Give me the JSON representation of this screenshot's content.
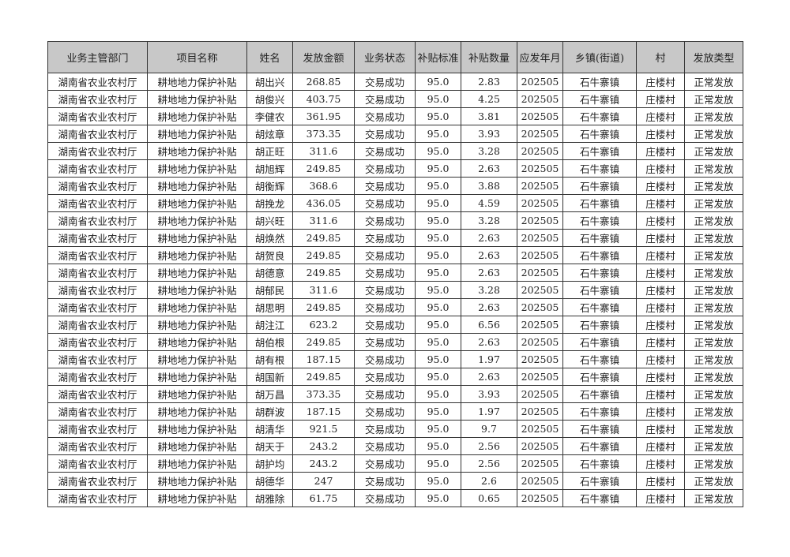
{
  "headers": [
    "业务主管部门",
    "项目名称",
    "姓名",
    "发放金额",
    "业务状态",
    "补贴标准",
    "补贴数量",
    "应发年月",
    "乡镇(街道)",
    "村",
    "发放类型"
  ],
  "rows": [
    [
      "湖南省农业农村厅",
      "耕地地力保护补贴",
      "胡出兴",
      "268.85",
      "交易成功",
      "95.0",
      "2.83",
      "202505",
      "石牛寨镇",
      "庄楼村",
      "正常发放"
    ],
    [
      "湖南省农业农村厅",
      "耕地地力保护补贴",
      "胡俊兴",
      "403.75",
      "交易成功",
      "95.0",
      "4.25",
      "202505",
      "石牛寨镇",
      "庄楼村",
      "正常发放"
    ],
    [
      "湖南省农业农村厅",
      "耕地地力保护补贴",
      "李健农",
      "361.95",
      "交易成功",
      "95.0",
      "3.81",
      "202505",
      "石牛寨镇",
      "庄楼村",
      "正常发放"
    ],
    [
      "湖南省农业农村厅",
      "耕地地力保护补贴",
      "胡炫章",
      "373.35",
      "交易成功",
      "95.0",
      "3.93",
      "202505",
      "石牛寨镇",
      "庄楼村",
      "正常发放"
    ],
    [
      "湖南省农业农村厅",
      "耕地地力保护补贴",
      "胡正旺",
      "311.6",
      "交易成功",
      "95.0",
      "3.28",
      "202505",
      "石牛寨镇",
      "庄楼村",
      "正常发放"
    ],
    [
      "湖南省农业农村厅",
      "耕地地力保护补贴",
      "胡旭辉",
      "249.85",
      "交易成功",
      "95.0",
      "2.63",
      "202505",
      "石牛寨镇",
      "庄楼村",
      "正常发放"
    ],
    [
      "湖南省农业农村厅",
      "耕地地力保护补贴",
      "胡衡辉",
      "368.6",
      "交易成功",
      "95.0",
      "3.88",
      "202505",
      "石牛寨镇",
      "庄楼村",
      "正常发放"
    ],
    [
      "湖南省农业农村厅",
      "耕地地力保护补贴",
      "胡挽龙",
      "436.05",
      "交易成功",
      "95.0",
      "4.59",
      "202505",
      "石牛寨镇",
      "庄楼村",
      "正常发放"
    ],
    [
      "湖南省农业农村厅",
      "耕地地力保护补贴",
      "胡兴旺",
      "311.6",
      "交易成功",
      "95.0",
      "3.28",
      "202505",
      "石牛寨镇",
      "庄楼村",
      "正常发放"
    ],
    [
      "湖南省农业农村厅",
      "耕地地力保护补贴",
      "胡焕然",
      "249.85",
      "交易成功",
      "95.0",
      "2.63",
      "202505",
      "石牛寨镇",
      "庄楼村",
      "正常发放"
    ],
    [
      "湖南省农业农村厅",
      "耕地地力保护补贴",
      "胡贺良",
      "249.85",
      "交易成功",
      "95.0",
      "2.63",
      "202505",
      "石牛寨镇",
      "庄楼村",
      "正常发放"
    ],
    [
      "湖南省农业农村厅",
      "耕地地力保护补贴",
      "胡德意",
      "249.85",
      "交易成功",
      "95.0",
      "2.63",
      "202505",
      "石牛寨镇",
      "庄楼村",
      "正常发放"
    ],
    [
      "湖南省农业农村厅",
      "耕地地力保护补贴",
      "胡郁民",
      "311.6",
      "交易成功",
      "95.0",
      "3.28",
      "202505",
      "石牛寨镇",
      "庄楼村",
      "正常发放"
    ],
    [
      "湖南省农业农村厅",
      "耕地地力保护补贴",
      "胡思明",
      "249.85",
      "交易成功",
      "95.0",
      "2.63",
      "202505",
      "石牛寨镇",
      "庄楼村",
      "正常发放"
    ],
    [
      "湖南省农业农村厅",
      "耕地地力保护补贴",
      "胡注江",
      "623.2",
      "交易成功",
      "95.0",
      "6.56",
      "202505",
      "石牛寨镇",
      "庄楼村",
      "正常发放"
    ],
    [
      "湖南省农业农村厅",
      "耕地地力保护补贴",
      "胡伯根",
      "249.85",
      "交易成功",
      "95.0",
      "2.63",
      "202505",
      "石牛寨镇",
      "庄楼村",
      "正常发放"
    ],
    [
      "湖南省农业农村厅",
      "耕地地力保护补贴",
      "胡有根",
      "187.15",
      "交易成功",
      "95.0",
      "1.97",
      "202505",
      "石牛寨镇",
      "庄楼村",
      "正常发放"
    ],
    [
      "湖南省农业农村厅",
      "耕地地力保护补贴",
      "胡国新",
      "249.85",
      "交易成功",
      "95.0",
      "2.63",
      "202505",
      "石牛寨镇",
      "庄楼村",
      "正常发放"
    ],
    [
      "湖南省农业农村厅",
      "耕地地力保护补贴",
      "胡万昌",
      "373.35",
      "交易成功",
      "95.0",
      "3.93",
      "202505",
      "石牛寨镇",
      "庄楼村",
      "正常发放"
    ],
    [
      "湖南省农业农村厅",
      "耕地地力保护补贴",
      "胡群波",
      "187.15",
      "交易成功",
      "95.0",
      "1.97",
      "202505",
      "石牛寨镇",
      "庄楼村",
      "正常发放"
    ],
    [
      "湖南省农业农村厅",
      "耕地地力保护补贴",
      "胡清华",
      "921.5",
      "交易成功",
      "95.0",
      "9.7",
      "202505",
      "石牛寨镇",
      "庄楼村",
      "正常发放"
    ],
    [
      "湖南省农业农村厅",
      "耕地地力保护补贴",
      "胡天于",
      "243.2",
      "交易成功",
      "95.0",
      "2.56",
      "202505",
      "石牛寨镇",
      "庄楼村",
      "正常发放"
    ],
    [
      "湖南省农业农村厅",
      "耕地地力保护补贴",
      "胡护均",
      "243.2",
      "交易成功",
      "95.0",
      "2.56",
      "202505",
      "石牛寨镇",
      "庄楼村",
      "正常发放"
    ],
    [
      "湖南省农业农村厅",
      "耕地地力保护补贴",
      "胡德华",
      "247",
      "交易成功",
      "95.0",
      "2.6",
      "202505",
      "石牛寨镇",
      "庄楼村",
      "正常发放"
    ],
    [
      "湖南省农业农村厅",
      "耕地地力保护补贴",
      "胡雅除",
      "61.75",
      "交易成功",
      "95.0",
      "0.65",
      "202505",
      "石牛寨镇",
      "庄楼村",
      "正常发放"
    ]
  ]
}
